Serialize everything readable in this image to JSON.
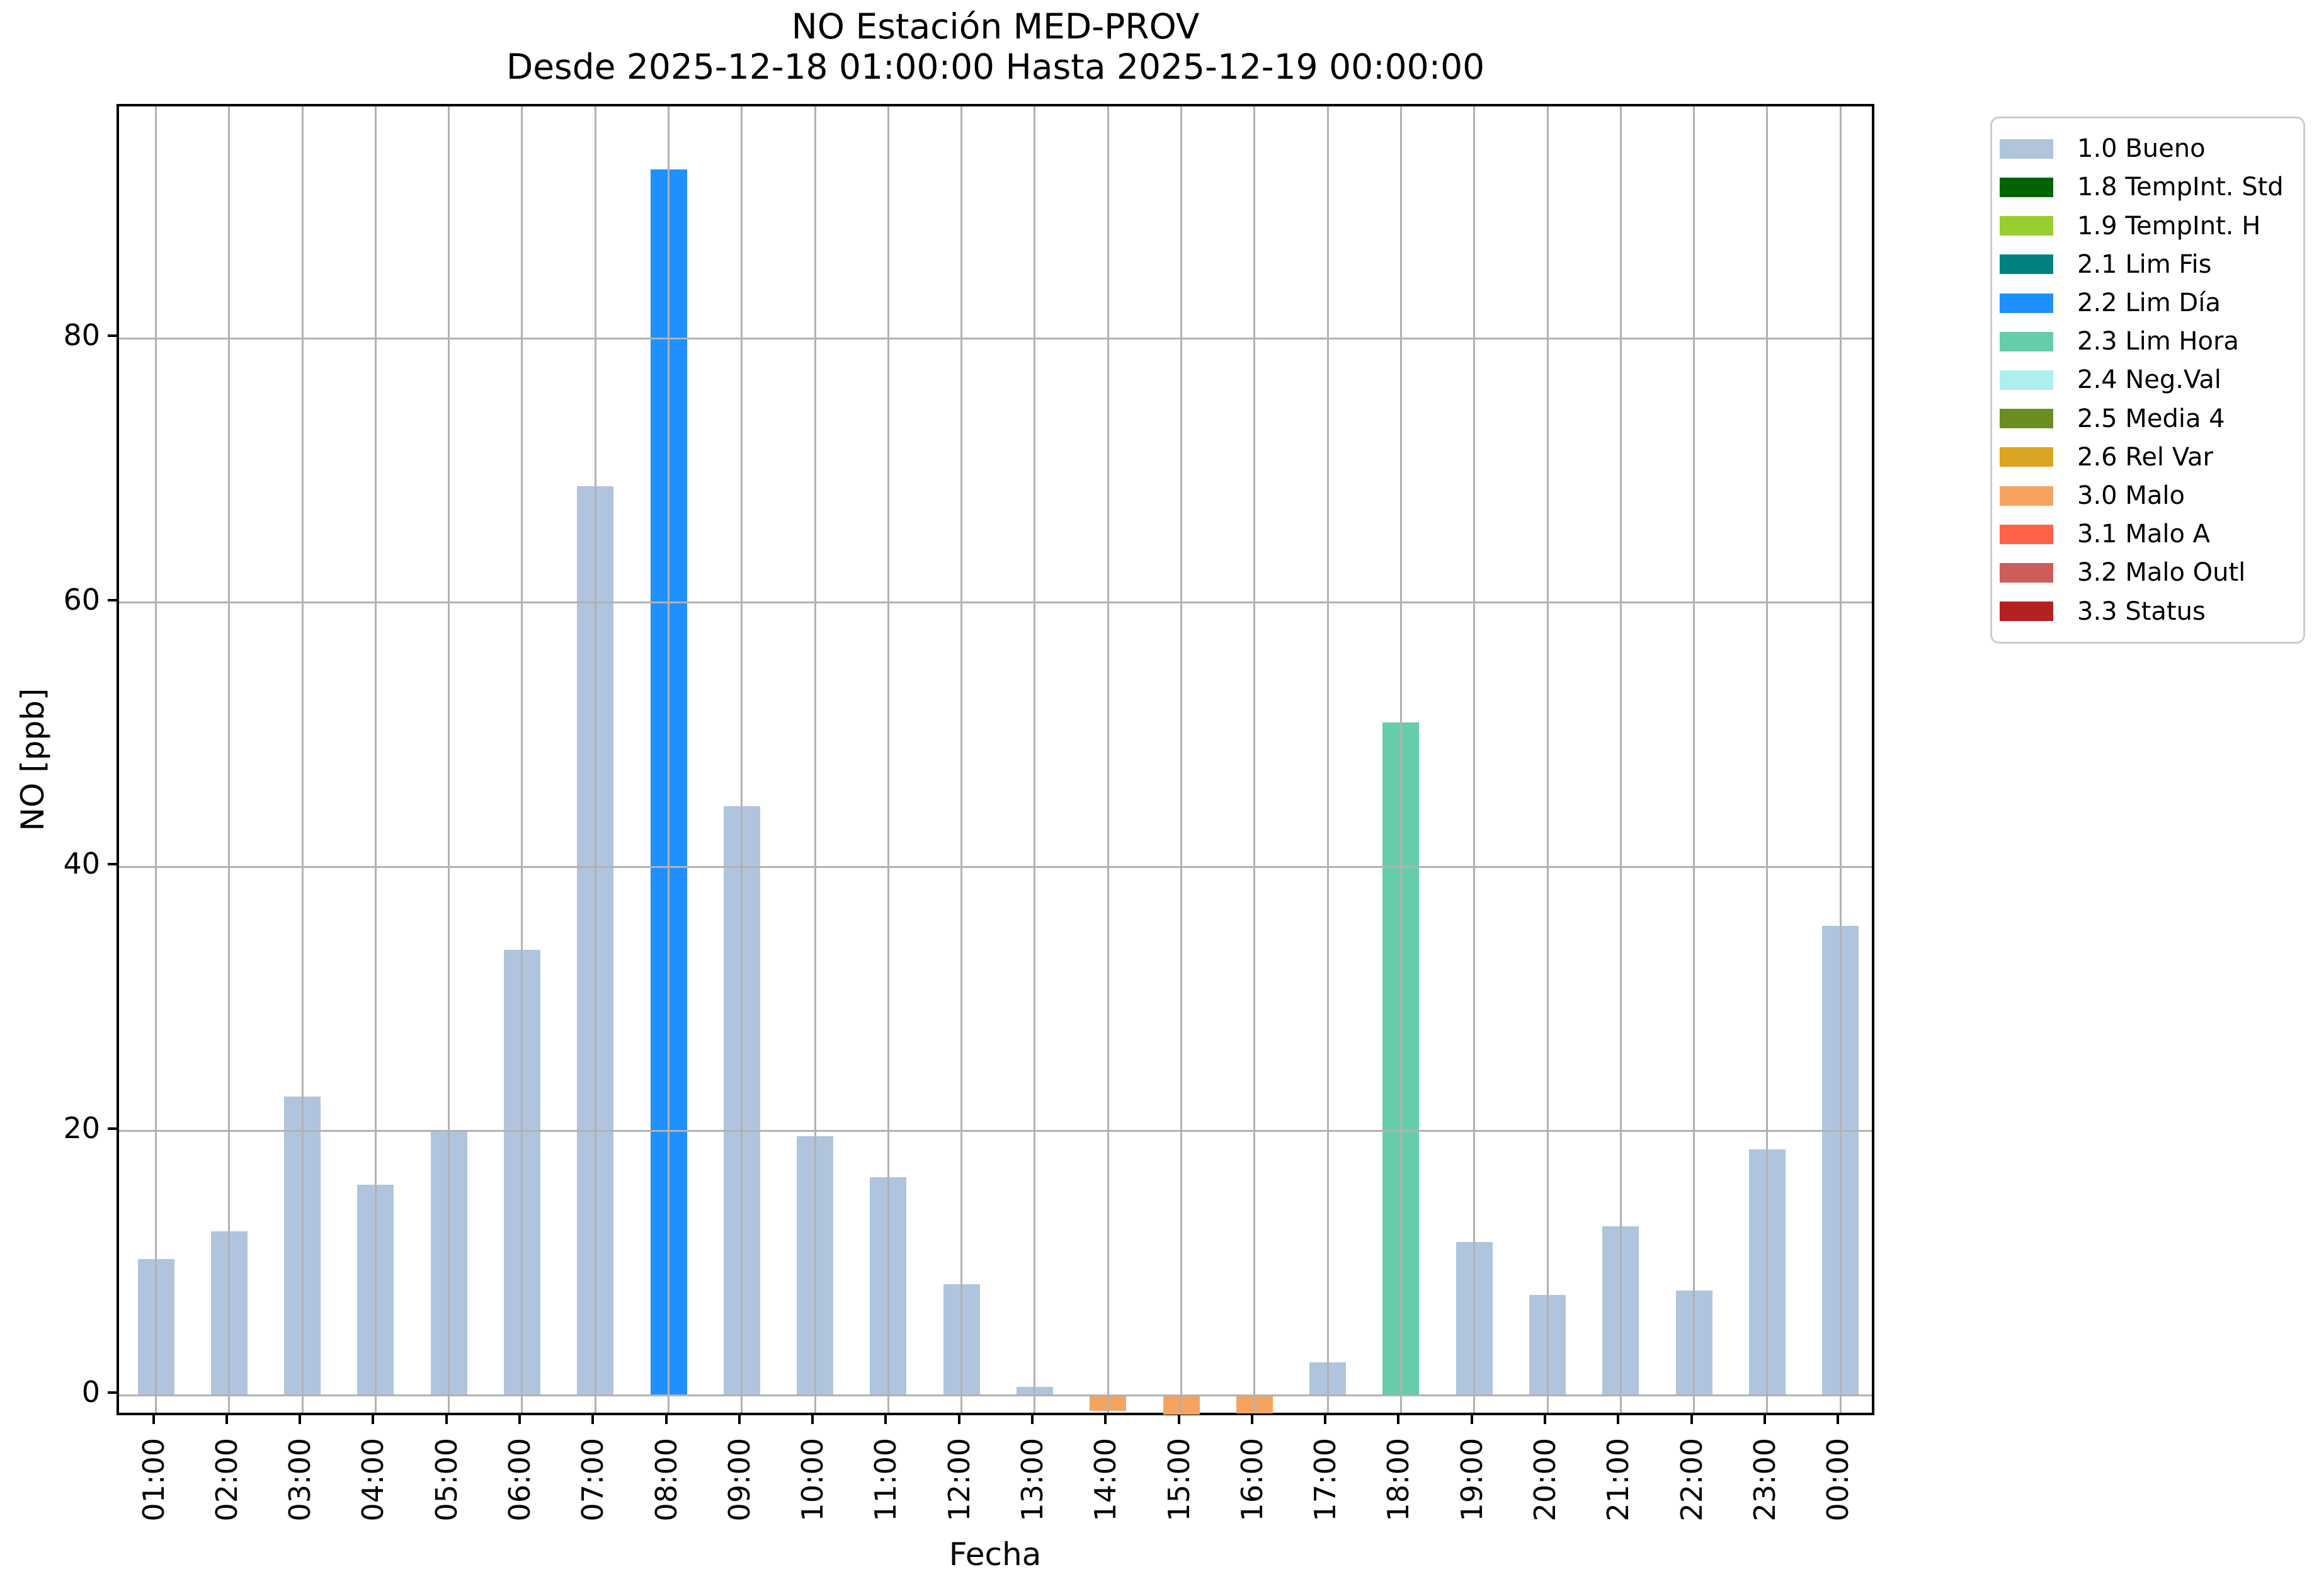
{
  "title": {
    "line1": "NO Estación MED-PROV",
    "line2": "Desde 2025-12-18 01:00:00 Hasta 2025-12-19 00:00:00"
  },
  "axes": {
    "xlabel": "Fecha",
    "ylabel": "NO [ppb]",
    "yticks": [
      0,
      20,
      40,
      60,
      80
    ],
    "ylim": [
      -1.7,
      97.5
    ],
    "grid": true
  },
  "legend": {
    "items": [
      {
        "label": "1.0 Bueno",
        "color": "#b0c4de"
      },
      {
        "label": "1.8 TempInt. Std",
        "color": "#006400"
      },
      {
        "label": "1.9 TempInt. H",
        "color": "#9acd32"
      },
      {
        "label": "2.1 Lim Fis",
        "color": "#008080"
      },
      {
        "label": "2.2 Lim Día",
        "color": "#1e90ff"
      },
      {
        "label": "2.3 Lim Hora",
        "color": "#66cdaa"
      },
      {
        "label": "2.4 Neg.Val",
        "color": "#afeeee"
      },
      {
        "label": "2.5 Media 4",
        "color": "#6b8e23"
      },
      {
        "label": "2.6 Rel Var",
        "color": "#daa520"
      },
      {
        "label": "3.0 Malo",
        "color": "#f4a460"
      },
      {
        "label": "3.1 Malo A",
        "color": "#ff6347"
      },
      {
        "label": "3.2 Malo Outl",
        "color": "#cd5c5c"
      },
      {
        "label": "3.3 Status",
        "color": "#b22222"
      }
    ]
  },
  "chart_data": {
    "type": "bar",
    "title": "NO Estación MED-PROV",
    "subtitle": "Desde 2025-12-18 01:00:00 Hasta 2025-12-19 00:00:00",
    "xlabel": "Fecha",
    "ylabel": "NO [ppb]",
    "ylim": [
      -1.7,
      97.5
    ],
    "yticks": [
      0,
      20,
      40,
      60,
      80
    ],
    "grid": true,
    "legend_position": "outside upper right",
    "legend_labels": [
      "1.0 Bueno",
      "1.8 TempInt. Std",
      "1.9 TempInt. H",
      "2.1 Lim Fis",
      "2.2 Lim Día",
      "2.3 Lim Hora",
      "2.4 Neg.Val",
      "2.5 Media 4",
      "2.6 Rel Var",
      "3.0 Malo",
      "3.1 Malo A",
      "3.2 Malo Outl",
      "3.3 Status"
    ],
    "categories": [
      "01:00",
      "02:00",
      "03:00",
      "04:00",
      "05:00",
      "06:00",
      "07:00",
      "08:00",
      "09:00",
      "10:00",
      "11:00",
      "12:00",
      "13:00",
      "14:00",
      "15:00",
      "16:00",
      "17:00",
      "18:00",
      "19:00",
      "20:00",
      "21:00",
      "22:00",
      "23:00",
      "00:00"
    ],
    "values": [
      10.3,
      12.4,
      22.6,
      15.9,
      20.0,
      33.7,
      68.8,
      92.8,
      44.6,
      19.6,
      16.5,
      8.4,
      0.6,
      -1.2,
      -1.5,
      -1.4,
      2.5,
      50.9,
      11.6,
      7.6,
      12.8,
      7.9,
      18.6,
      35.5
    ],
    "flags": [
      "1.0 Bueno",
      "1.0 Bueno",
      "1.0 Bueno",
      "1.0 Bueno",
      "1.0 Bueno",
      "1.0 Bueno",
      "1.0 Bueno",
      "2.2 Lim Día",
      "1.0 Bueno",
      "1.0 Bueno",
      "1.0 Bueno",
      "1.0 Bueno",
      "1.0 Bueno",
      "3.0 Malo",
      "3.0 Malo",
      "3.0 Malo",
      "1.0 Bueno",
      "2.3 Lim Hora",
      "1.0 Bueno",
      "1.0 Bueno",
      "1.0 Bueno",
      "1.0 Bueno",
      "1.0 Bueno",
      "1.0 Bueno"
    ],
    "flag_colors": {
      "1.0 Bueno": "#b0c4de",
      "2.2 Lim Día": "#1e90ff",
      "2.3 Lim Hora": "#66cdaa",
      "3.0 Malo": "#f4a460"
    }
  }
}
